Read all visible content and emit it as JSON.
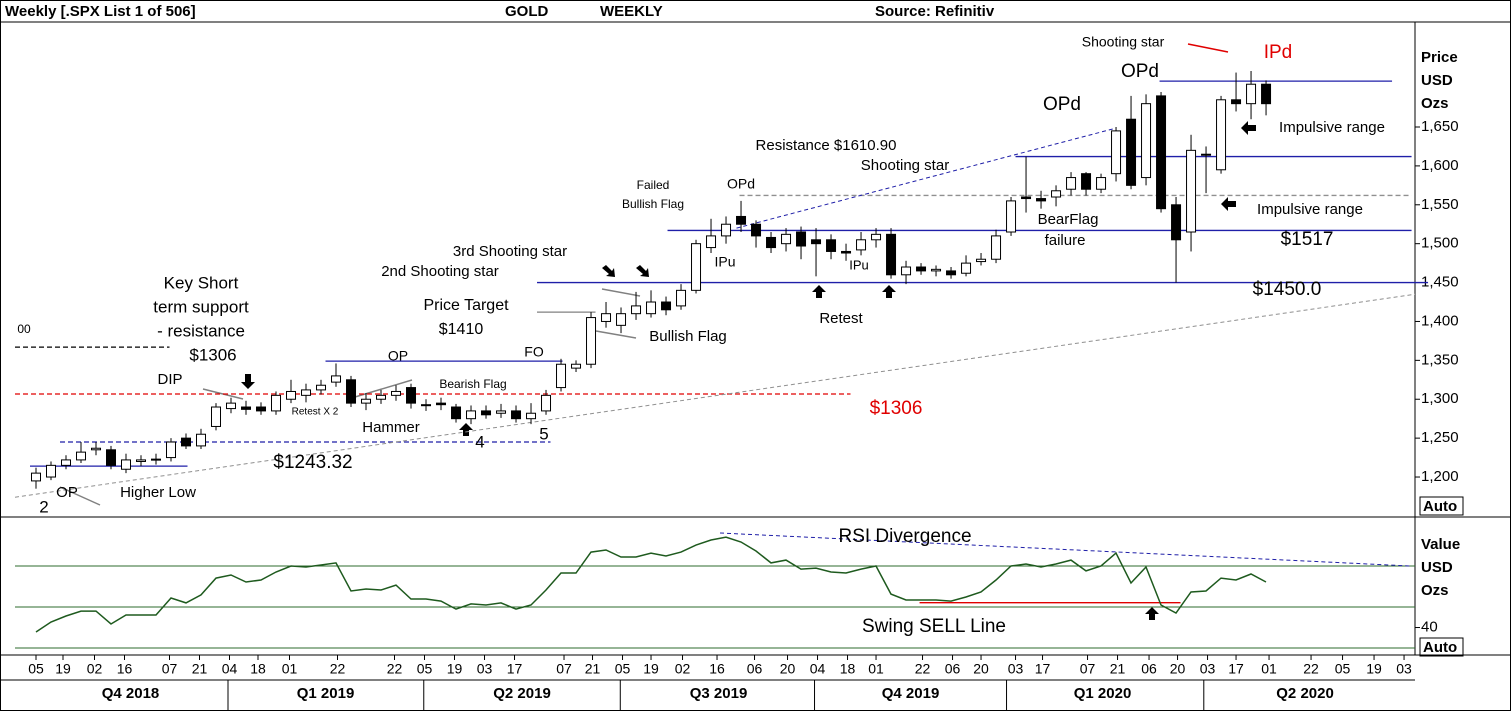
{
  "chart_data": {
    "type": "candlestick",
    "header": [
      "Weekly [.SPX List 1 of 506]",
      "GOLD",
      "WEEKLY",
      "Source: Refinitiv"
    ],
    "y_axis_label": [
      "Price",
      "USD",
      "Ozs"
    ],
    "scale_mode": "Auto",
    "up_color": "#ffffff",
    "down_color": "#000000",
    "open": [
      1195,
      1200,
      1215,
      1222,
      1235,
      1235,
      1210,
      1220,
      1222,
      1225,
      1250,
      1240,
      1265,
      1288,
      1290,
      1290,
      1285,
      1300,
      1305,
      1312,
      1322,
      1325,
      1295,
      1300,
      1305,
      1315,
      1293,
      1295,
      1290,
      1275,
      1285,
      1282,
      1285,
      1275,
      1285,
      1315,
      1340,
      1345,
      1400,
      1395,
      1410,
      1410,
      1425,
      1420,
      1440,
      1495,
      1510,
      1535,
      1525,
      1508,
      1500,
      1515,
      1505,
      1505,
      1490,
      1492,
      1505,
      1512,
      1460,
      1470,
      1465,
      1465,
      1462,
      1477,
      1480,
      1515,
      1560,
      1558,
      1560,
      1570,
      1590,
      1570,
      1590,
      1660,
      1585,
      1690,
      1550,
      1515,
      1615,
      1595,
      1685,
      1680,
      1705
    ],
    "high": [
      1212,
      1220,
      1228,
      1245,
      1245,
      1240,
      1230,
      1228,
      1230,
      1250,
      1256,
      1262,
      1295,
      1302,
      1298,
      1296,
      1310,
      1325,
      1320,
      1325,
      1346,
      1330,
      1308,
      1312,
      1318,
      1320,
      1300,
      1302,
      1294,
      1292,
      1292,
      1294,
      1292,
      1295,
      1312,
      1352,
      1350,
      1412,
      1425,
      1418,
      1438,
      1440,
      1432,
      1448,
      1505,
      1532,
      1535,
      1555,
      1530,
      1515,
      1520,
      1522,
      1520,
      1512,
      1500,
      1515,
      1520,
      1520,
      1478,
      1475,
      1472,
      1470,
      1485,
      1488,
      1518,
      1560,
      1612,
      1568,
      1575,
      1592,
      1592,
      1590,
      1650,
      1690,
      1692,
      1695,
      1560,
      1640,
      1625,
      1690,
      1720,
      1722,
      1710
    ],
    "low": [
      1185,
      1196,
      1210,
      1218,
      1228,
      1210,
      1205,
      1214,
      1216,
      1220,
      1236,
      1236,
      1260,
      1282,
      1280,
      1280,
      1280,
      1295,
      1296,
      1306,
      1316,
      1290,
      1286,
      1294,
      1298,
      1288,
      1285,
      1286,
      1270,
      1268,
      1275,
      1276,
      1270,
      1268,
      1280,
      1310,
      1335,
      1340,
      1392,
      1385,
      1402,
      1405,
      1408,
      1415,
      1436,
      1488,
      1500,
      1515,
      1495,
      1488,
      1490,
      1480,
      1458,
      1480,
      1478,
      1485,
      1495,
      1455,
      1448,
      1460,
      1458,
      1455,
      1458,
      1472,
      1475,
      1510,
      1540,
      1545,
      1548,
      1562,
      1562,
      1565,
      1580,
      1570,
      1575,
      1540,
      1450,
      1490,
      1565,
      1590,
      1670,
      1660,
      1665
    ],
    "close": [
      1205,
      1215,
      1222,
      1232,
      1237,
      1215,
      1222,
      1222,
      1223,
      1245,
      1240,
      1255,
      1290,
      1295,
      1287,
      1285,
      1305,
      1310,
      1312,
      1318,
      1330,
      1295,
      1300,
      1305,
      1310,
      1295,
      1292,
      1293,
      1275,
      1285,
      1280,
      1285,
      1275,
      1282,
      1305,
      1345,
      1345,
      1405,
      1410,
      1410,
      1420,
      1425,
      1415,
      1440,
      1500,
      1510,
      1525,
      1525,
      1510,
      1495,
      1512,
      1497,
      1500,
      1490,
      1488,
      1505,
      1512,
      1460,
      1470,
      1465,
      1467,
      1460,
      1475,
      1480,
      1510,
      1555,
      1558,
      1555,
      1568,
      1585,
      1570,
      1585,
      1645,
      1575,
      1680,
      1545,
      1505,
      1620,
      1615,
      1685,
      1680,
      1705,
      1680
    ],
    "ylim": [
      1148.6,
      1785
    ],
    "yticks": [
      {
        "value": 1200,
        "label": "1,200"
      },
      {
        "value": 1250,
        "label": "1,250"
      },
      {
        "value": 1300,
        "label": "1,300"
      },
      {
        "value": 1350,
        "label": "1,350"
      },
      {
        "value": 1400,
        "label": "1,400"
      },
      {
        "value": 1450,
        "label": "1,450"
      },
      {
        "value": 1500,
        "label": "1,500"
      },
      {
        "value": 1550,
        "label": "1,550"
      },
      {
        "value": 1600,
        "label": "1,600"
      },
      {
        "value": 1650,
        "label": "1,650"
      }
    ],
    "xlim": [
      -1.4,
      91.93
    ],
    "xticks": [
      {
        "value": 0,
        "label": "05"
      },
      {
        "value": 1.8,
        "label": "19"
      },
      {
        "value": 3.9,
        "label": "02"
      },
      {
        "value": 5.9,
        "label": "16"
      },
      {
        "value": 8.9,
        "label": "07"
      },
      {
        "value": 10.9,
        "label": "21"
      },
      {
        "value": 12.9,
        "label": "04"
      },
      {
        "value": 14.8,
        "label": "18"
      },
      {
        "value": 16.9,
        "label": "01"
      },
      {
        "value": 20.1,
        "label": "22"
      },
      {
        "value": 23.9,
        "label": "22"
      },
      {
        "value": 25.9,
        "label": "05"
      },
      {
        "value": 27.9,
        "label": "19"
      },
      {
        "value": 29.9,
        "label": "03"
      },
      {
        "value": 31.9,
        "label": "17"
      },
      {
        "value": 35.2,
        "label": "07"
      },
      {
        "value": 37.1,
        "label": "21"
      },
      {
        "value": 39.1,
        "label": "05"
      },
      {
        "value": 41,
        "label": "19"
      },
      {
        "value": 43.1,
        "label": "02"
      },
      {
        "value": 45.4,
        "label": "16"
      },
      {
        "value": 47.9,
        "label": "06"
      },
      {
        "value": 50.1,
        "label": "20"
      },
      {
        "value": 52.1,
        "label": "04"
      },
      {
        "value": 54.1,
        "label": "18"
      },
      {
        "value": 56,
        "label": "01"
      },
      {
        "value": 59.1,
        "label": "22"
      },
      {
        "value": 61.1,
        "label": "06"
      },
      {
        "value": 63,
        "label": "20"
      },
      {
        "value": 65.3,
        "label": "03"
      },
      {
        "value": 67.1,
        "label": "17"
      },
      {
        "value": 70.1,
        "label": "07"
      },
      {
        "value": 72.1,
        "label": "21"
      },
      {
        "value": 74.2,
        "label": "06"
      },
      {
        "value": 76.1,
        "label": "20"
      },
      {
        "value": 78.1,
        "label": "03"
      },
      {
        "value": 80,
        "label": "17"
      },
      {
        "value": 82.2,
        "label": "01"
      },
      {
        "value": 85,
        "label": "22"
      },
      {
        "value": 87.1,
        "label": "05"
      },
      {
        "value": 89.2,
        "label": "19"
      },
      {
        "value": 91.2,
        "label": "03"
      }
    ],
    "quarters": [
      {
        "value": 6.3,
        "label": "Q4 2018"
      },
      {
        "value": 19.3,
        "label": "Q1 2019"
      },
      {
        "value": 32.4,
        "label": "Q2 2019"
      },
      {
        "value": 45.5,
        "label": "Q3 2019"
      },
      {
        "value": 58.3,
        "label": "Q4 2019"
      },
      {
        "value": 71.1,
        "label": "Q1 2020"
      },
      {
        "value": 84.6,
        "label": "Q2 2020"
      }
    ],
    "levels": [
      {
        "value": 1450,
        "from": 33.4,
        "to": 92.8,
        "color": "#1f1fa8",
        "dash": false
      },
      {
        "value": 1517,
        "from": 42.1,
        "to": 91.7,
        "color": "#1f1fa8",
        "dash": false
      },
      {
        "value": 1612,
        "from": 65.3,
        "to": 91.7,
        "color": "#1f1fa8",
        "dash": false
      },
      {
        "value": 1709,
        "from": 74.9,
        "to": 90.4,
        "color": "#1f1fa8",
        "dash": false
      },
      {
        "value": 1562,
        "from": 46.9,
        "to": 91.7,
        "color": "#909090",
        "dash": true
      },
      {
        "value": 1349,
        "from": 19.3,
        "to": 35.1,
        "color": "#1f1fa8",
        "dash": false
      },
      {
        "value": 1306.7,
        "from": -1.4,
        "to": 54.3,
        "color": "#e00000",
        "dash": true
      },
      {
        "value": 1245,
        "from": 1.6,
        "to": 34.3,
        "color": "#1f1fa8",
        "dash": true
      },
      {
        "value": 1214,
        "from": -0.4,
        "to": 10.1,
        "color": "#1f1fa8",
        "dash": false
      },
      {
        "value": 1367,
        "from": -1.4,
        "to": 8.9,
        "color": "#000000",
        "dash": true
      },
      {
        "value": 1412,
        "from": 33.4,
        "to": 37.3,
        "color": "#808080",
        "dash": false
      }
    ],
    "trendlines": [
      {
        "from": [
          46.7,
          1520
        ],
        "to": [
          72,
          1648.6
        ],
        "color": "#1f1fa8",
        "dash": true
      },
      {
        "from": [
          -1.4,
          1174
        ],
        "to": [
          91.93,
          1435
        ],
        "color": "#909090",
        "dash": true
      }
    ],
    "annotations": [
      {
        "text": "Shooting star"
      },
      {
        "text": "IPd",
        "color": "#e00000"
      },
      {
        "text": "OPd"
      },
      {
        "text": "OPd"
      },
      {
        "text": "Impulsive range"
      },
      {
        "text": "Resistance $1610.90"
      },
      {
        "text": "Shooting star"
      },
      {
        "text": "Failed"
      },
      {
        "text": "Bullish Flag"
      },
      {
        "text": "OPd"
      },
      {
        "text": "BearFlag"
      },
      {
        "text": "failure"
      },
      {
        "text": "Impulsive range"
      },
      {
        "text": "$1517"
      },
      {
        "text": "3rd Shooting star"
      },
      {
        "text": "2nd Shooting star"
      },
      {
        "text": "IPu"
      },
      {
        "text": "IPu"
      },
      {
        "text": "$1450.0"
      },
      {
        "text": "Key Short"
      },
      {
        "text": "term support"
      },
      {
        "text": "- resistance"
      },
      {
        "text": "$1306"
      },
      {
        "text": "Price Target"
      },
      {
        "text": "$1410"
      },
      {
        "text": "Retest"
      },
      {
        "text": "Bullish Flag"
      },
      {
        "text": "00"
      },
      {
        "text": "OP"
      },
      {
        "text": "FO"
      },
      {
        "text": "DIP"
      },
      {
        "text": "Bearish Flag"
      },
      {
        "text": "Retest X 2"
      },
      {
        "text": "$1306",
        "color": "#e00000"
      },
      {
        "text": "Hammer"
      },
      {
        "text": "4"
      },
      {
        "text": "5"
      },
      {
        "text": "$1243.32"
      },
      {
        "text": "Higher Low"
      },
      {
        "text": "OP"
      },
      {
        "text": "2"
      }
    ],
    "rsi": {
      "y_axis_label": [
        "Value",
        "USD",
        "Ozs"
      ],
      "scale_mode": "Auto",
      "color": "#1e5a1e",
      "values": [
        37.8,
        42.7,
        45.6,
        48.0,
        48.0,
        41.7,
        46.1,
        46.1,
        46.1,
        54.4,
        52.0,
        55.9,
        64.1,
        65.6,
        62.2,
        63.2,
        67.1,
        70.0,
        69.5,
        70.5,
        71.5,
        57.8,
        58.8,
        58.3,
        60.7,
        53.9,
        53.9,
        52.9,
        49.0,
        51.5,
        51.0,
        52.0,
        49.0,
        51.0,
        58.3,
        66.6,
        66.6,
        76.8,
        77.8,
        74.4,
        74.4,
        76.3,
        74.9,
        76.8,
        80.2,
        82.7,
        84.1,
        81.7,
        77.3,
        71.5,
        72.9,
        68.5,
        69.0,
        67.1,
        66.6,
        68.5,
        70.0,
        56.3,
        53.4,
        53.4,
        53.4,
        52.9,
        54.9,
        57.3,
        63.2,
        70.0,
        71.0,
        69.5,
        71.0,
        72.9,
        67.6,
        70.0,
        76.3,
        61.7,
        69.5,
        51.0,
        47.1,
        57.3,
        57.8,
        64.1,
        63.2,
        66.1,
        62.2
      ],
      "ylim": [
        26.6,
        93.9
      ],
      "yticks": [
        40
      ],
      "grid_lines": [
        30,
        50,
        70
      ],
      "grid_color": "#2e6b2e",
      "levels": [
        {
          "value": 52.1,
          "from": 58.9,
          "to": 76.3,
          "color": "#e00000",
          "dash": false
        }
      ],
      "trendlines": [
        {
          "from": [
            45.6,
            86.1
          ],
          "to": [
            91.6,
            70
          ],
          "color": "#1f1fa8",
          "dash": true
        }
      ],
      "annotations": [
        {
          "text": "RSI Divergence"
        },
        {
          "text": "Swing SELL Line"
        }
      ]
    }
  }
}
